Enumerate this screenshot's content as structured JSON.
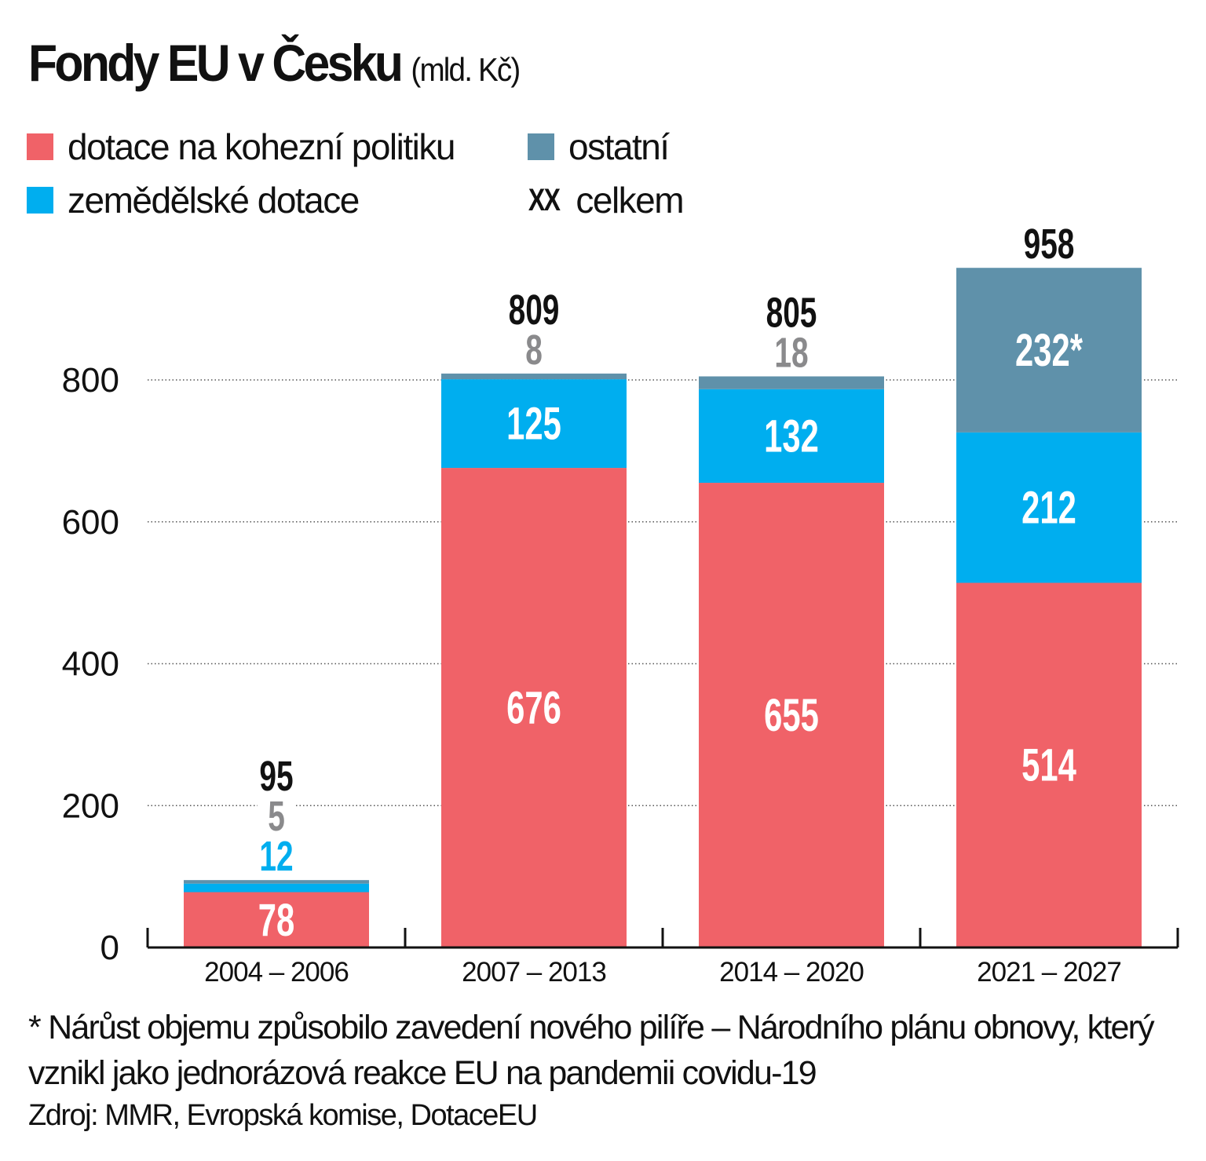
{
  "title": "Fondy EU v Česku",
  "subtitle": "(mld. Kč)",
  "legend": [
    {
      "label": "dotace na kohezní politiku",
      "color": "#f06268"
    },
    {
      "label": "ostatní",
      "color": "#5f91aa"
    },
    {
      "label": "zemědělské dotace",
      "color": "#00aeef"
    },
    {
      "label": "celkem",
      "marker": "XX"
    }
  ],
  "footnote": "* Nárůst objemu způsobilo zavedení nového pilíře – Národního plánu obnovy, který vznikl jako jednorázová reakce EU na pandemii covidu-19",
  "source": "Zdroj: MMR, Evropská komise, DotaceEU",
  "chart_data": {
    "type": "bar",
    "stacked": true,
    "title": "Fondy EU v Česku",
    "ylabel": "",
    "xlabel": "",
    "ylim": [
      0,
      958
    ],
    "yticks": [
      0,
      200,
      400,
      600,
      800
    ],
    "grid": "horizontal dotted",
    "legend_position": "top-left",
    "categories": [
      "2004 – 2006",
      "2007 – 2013",
      "2014 – 2020",
      "2021 – 2027"
    ],
    "series": [
      {
        "name": "dotace na kohezní politiku",
        "color": "#f06268",
        "values": [
          78,
          676,
          655,
          514
        ],
        "labels": [
          "78",
          "676",
          "655",
          "514"
        ]
      },
      {
        "name": "zemědělské dotace",
        "color": "#00aeef",
        "values": [
          12,
          125,
          132,
          212
        ],
        "labels": [
          "12",
          "125",
          "132",
          "212"
        ]
      },
      {
        "name": "ostatní",
        "color": "#5f91aa",
        "values": [
          5,
          8,
          18,
          232
        ],
        "labels": [
          "5",
          "8",
          "18",
          "232*"
        ]
      }
    ],
    "totals": [
      "95",
      "809",
      "805",
      "958"
    ],
    "outside_label_color": "#8a8a8c"
  }
}
